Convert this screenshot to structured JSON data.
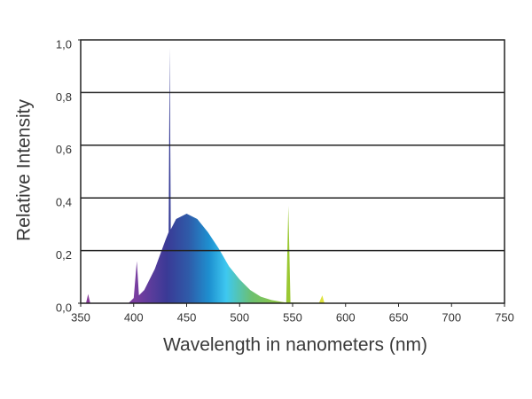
{
  "chart_data": {
    "type": "area",
    "x_label": "Wavelength in nanometers (nm)",
    "y_label": "Relative Intensity",
    "x": [
      350,
      355,
      357,
      359,
      395,
      400,
      403,
      405,
      410,
      420,
      430,
      433,
      434,
      435,
      440,
      450,
      460,
      470,
      480,
      490,
      500,
      510,
      520,
      530,
      540,
      544,
      546,
      548,
      560,
      575,
      578,
      580,
      600,
      750
    ],
    "values": [
      0,
      0,
      0.035,
      0,
      0,
      0.02,
      0.16,
      0.03,
      0.05,
      0.13,
      0.24,
      0.27,
      0.97,
      0.28,
      0.32,
      0.34,
      0.32,
      0.27,
      0.21,
      0.14,
      0.09,
      0.05,
      0.025,
      0.012,
      0.005,
      0.003,
      0.37,
      0.003,
      0.002,
      0.002,
      0.03,
      0.002,
      0,
      0
    ],
    "xlim": [
      350,
      750
    ],
    "xticks": [
      350,
      400,
      450,
      500,
      550,
      600,
      650,
      700,
      750
    ],
    "ylim": [
      0,
      1
    ],
    "yticks": [
      {
        "value": 0,
        "label": "0,0"
      },
      {
        "value": 0.2,
        "label": "0,2"
      },
      {
        "value": 0.4,
        "label": "0,4"
      },
      {
        "value": 0.6,
        "label": "0,6"
      },
      {
        "value": 0.8,
        "label": "0,8"
      },
      {
        "value": 1,
        "label": "1,0"
      }
    ],
    "grid": true
  }
}
